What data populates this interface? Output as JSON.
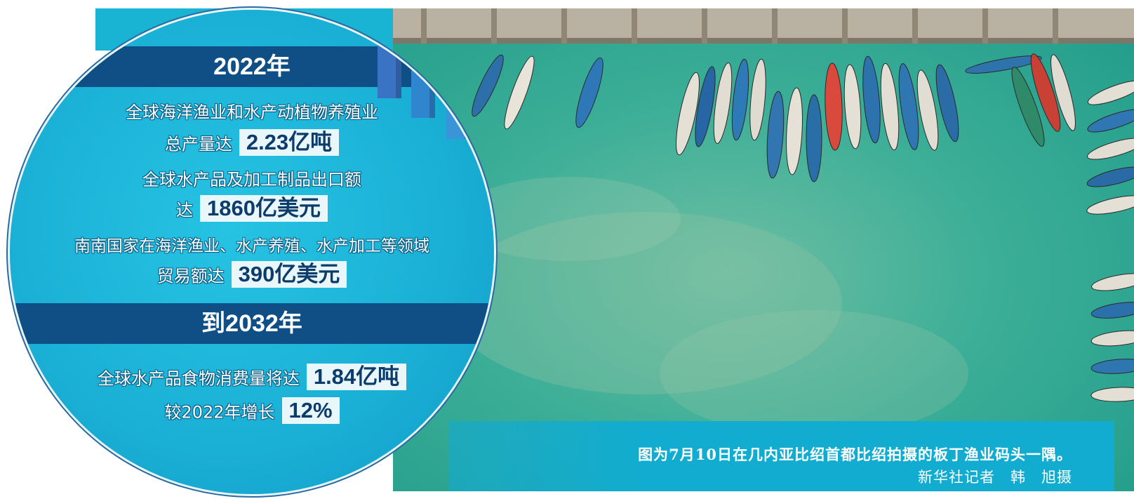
{
  "infographic": {
    "section_2022": {
      "heading": "2022年",
      "line1": "全球海洋渔业和水产动植物养殖业",
      "line2_label": "总产量达",
      "line2_value": "2.23亿吨",
      "line3": "全球水产品及加工制品出口额",
      "line4_label": "达",
      "line4_value": "1860亿美元",
      "line5": "南南国家在海洋渔业、水产养殖、水产加工等领域",
      "line6_label": "贸易额达",
      "line6_value": "390亿美元"
    },
    "section_2032": {
      "heading": "到2032年",
      "line1_label": "全球水产品食物消费量将达",
      "line1_value": "1.84亿吨",
      "line2_label": "较2022年增长",
      "line2_value": "12%"
    }
  },
  "photo": {
    "caption": "图为7月10日在几内亚比绍首都比绍拍摄的板丁渔业码头一隅。",
    "credit": "新华社记者　韩　旭摄"
  },
  "colors": {
    "accent_cyan": "#19b3d3",
    "heading_navy": "#0f4f86",
    "value_box": "#e9f7fb",
    "water": "#3fb59c"
  }
}
